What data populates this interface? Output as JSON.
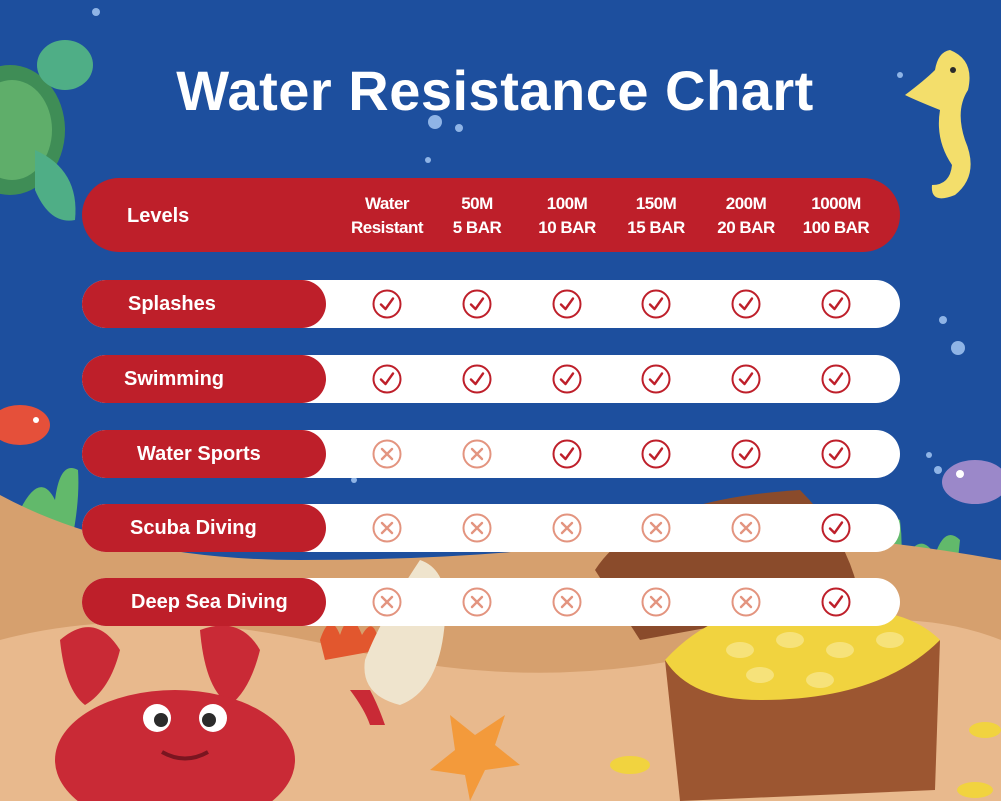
{
  "title": "Water Resistance Chart",
  "colors": {
    "background": "#1d4f9e",
    "accent_red": "#be1f2a",
    "row_white": "#ffffff",
    "check": "#be1f2a",
    "cross": "#e3947f"
  },
  "icons": {
    "yes": "check-circle-icon",
    "no": "x-circle-icon"
  },
  "chart_data": {
    "type": "table",
    "row_header": "Levels",
    "columns": [
      {
        "line1": "Water",
        "line2": "Resistant"
      },
      {
        "line1": "50M",
        "line2": "5 BAR"
      },
      {
        "line1": "100M",
        "line2": "10 BAR"
      },
      {
        "line1": "150M",
        "line2": "15 BAR"
      },
      {
        "line1": "200M",
        "line2": "20 BAR"
      },
      {
        "line1": "1000M",
        "line2": "100 BAR"
      }
    ],
    "rows": [
      {
        "label": "Splashes",
        "values": [
          true,
          true,
          true,
          true,
          true,
          true
        ]
      },
      {
        "label": "Swimming",
        "values": [
          true,
          true,
          true,
          true,
          true,
          true
        ]
      },
      {
        "label": "Water Sports",
        "values": [
          false,
          false,
          true,
          true,
          true,
          true
        ]
      },
      {
        "label": "Scuba Diving",
        "values": [
          false,
          false,
          false,
          false,
          false,
          true
        ]
      },
      {
        "label": "Deep Sea Diving",
        "values": [
          false,
          false,
          false,
          false,
          false,
          true
        ]
      }
    ]
  }
}
